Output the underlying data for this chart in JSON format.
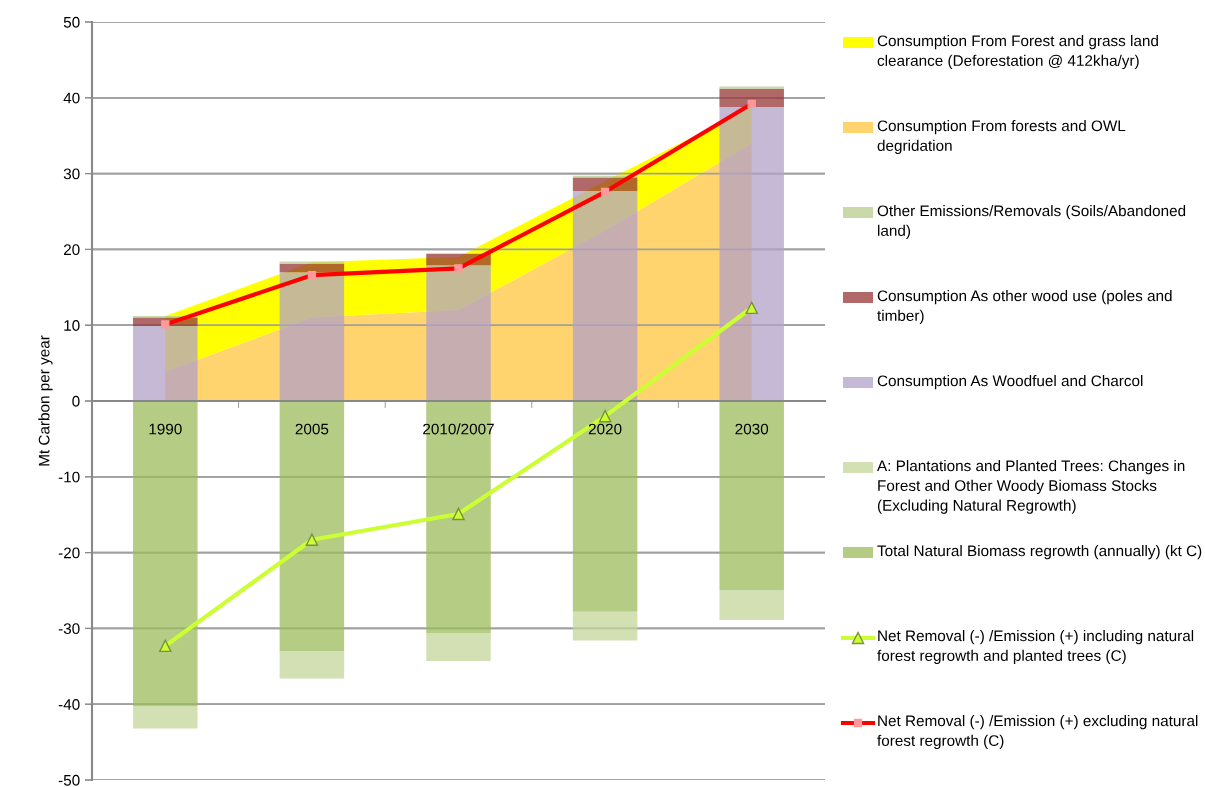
{
  "chart_data": [
    {
      "type": "area",
      "categories": [
        null,
        null,
        null,
        null,
        null
      ],
      "stacked": true,
      "tick_labels": false,
      "ylim": [
        -50,
        50
      ],
      "yticks": [
        -50,
        -40,
        -30,
        -20,
        -10,
        0,
        10,
        20,
        30,
        40,
        50
      ],
      "grid": "y",
      "legend": "right",
      "series": [
        {
          "name": "Consumption From forests and OWL degridation",
          "color": "#ffd46e",
          "values": [
            3.9,
            11.0,
            12.0,
            22.5,
            34.0
          ]
        },
        {
          "name": "Consumption From Forest and grass land clearance (Deforestation @ 412kha/yr)",
          "color": "#ffff00",
          "values": [
            7.3,
            7.3,
            7.0,
            6.5,
            4.8
          ]
        }
      ]
    },
    {
      "type": "bar",
      "ylabel": "Mt Carbon per year",
      "categories": [
        "1990",
        "2005",
        "2010/2007",
        "2020",
        "2030"
      ],
      "stacked": true,
      "series": [
        {
          "name": "Total Natural Biomass regrowth (annually) (kt C)",
          "type": "bar",
          "color": "#9bbb59",
          "values": [
            -40.3,
            -33.0,
            -30.6,
            -27.8,
            -25.0
          ]
        },
        {
          "name": "A: Plantations and Planted Trees: Changes in Forest and Other Woody Biomass Stocks (Excluding Natural Regrowth)",
          "type": "bar",
          "color": "#c3d69b",
          "values": [
            -2.9,
            -3.6,
            -3.7,
            -3.8,
            -3.9
          ]
        },
        {
          "name": "Consumption As Woodfuel and Charcol",
          "type": "bar",
          "color": "#b3a2c7",
          "values": [
            9.9,
            17.0,
            17.9,
            27.7,
            38.8
          ]
        },
        {
          "name": "Consumption As other wood use (poles and timber)",
          "type": "bar",
          "color": "#953735",
          "values": [
            1.1,
            1.1,
            1.5,
            1.8,
            2.4
          ]
        },
        {
          "name": "Other Emissions/Removals (Soils/Abandoned land)",
          "type": "bar",
          "color": "#b7cc8c",
          "values": [
            0.2,
            0.3,
            0.1,
            0.2,
            0.3
          ]
        },
        {
          "name": "Net Removal (-) /Emission (+) including natural forest regrowth and planted trees (C)",
          "type": "line",
          "color": "#ccff33",
          "marker": "triangle",
          "values": [
            -32.3,
            -18.3,
            -14.9,
            -2.0,
            12.3
          ]
        },
        {
          "name": "Net Removal (-) /Emission (+) excluding natural forest regrowth (C)",
          "type": "line",
          "color": "#ff0000",
          "marker": "square",
          "values": [
            10.1,
            16.6,
            17.5,
            27.6,
            39.2
          ]
        }
      ],
      "ylim": [
        -50,
        50
      ],
      "yticks": [
        -50,
        -40,
        -30,
        -20,
        -10,
        0,
        10,
        20,
        30,
        40,
        50
      ],
      "grid": "y",
      "legend": "right"
    }
  ]
}
